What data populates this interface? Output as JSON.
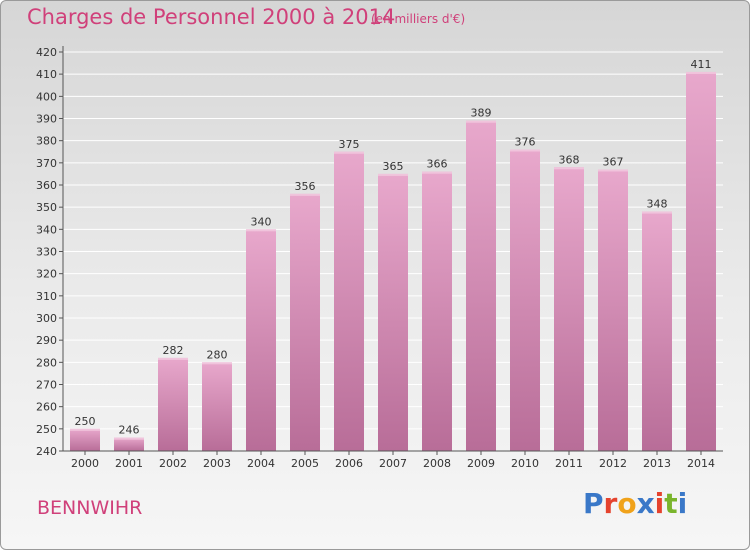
{
  "header": {
    "title": "Charges de Personnel 2000 à 2014",
    "unit": "(en milliers d'€)"
  },
  "footer": {
    "commune": "BENNWIHR",
    "logo_text": "Proxiti",
    "logo_colors": [
      "#3a78c8",
      "#e5432e",
      "#f0a21a",
      "#3a78c8",
      "#e5432e",
      "#7ab52c",
      "#3a78c8"
    ]
  },
  "colors": {
    "title": "#d0407a",
    "bar_top": "#e8a8cc",
    "bar_bottom": "#b86d98",
    "axis": "#555555",
    "gridline": "#ffffff"
  },
  "chart_data": {
    "type": "bar",
    "title": "Charges de Personnel 2000 à 2014",
    "xlabel": "",
    "ylabel": "",
    "categories": [
      "2000",
      "2001",
      "2002",
      "2003",
      "2004",
      "2005",
      "2006",
      "2007",
      "2008",
      "2009",
      "2010",
      "2011",
      "2012",
      "2013",
      "2014"
    ],
    "values": [
      250,
      246,
      282,
      280,
      340,
      356,
      375,
      365,
      366,
      389,
      376,
      368,
      367,
      348,
      411
    ],
    "ylim": [
      240,
      420
    ],
    "ytick_step": 10,
    "grid": true,
    "data_labels": true
  }
}
